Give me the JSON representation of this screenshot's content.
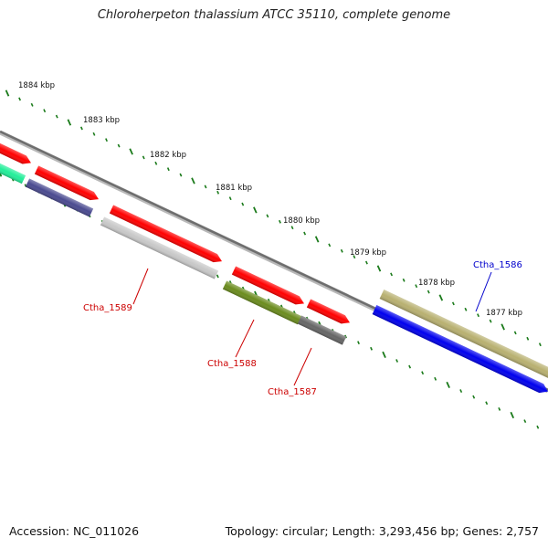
{
  "title": "Chloroherpeton thalassium ATCC 35110, complete genome",
  "footer": {
    "accession": "Accession: NC_011026",
    "stats": "Topology: circular; Length: 3,293,456 bp; Genes: 2,757"
  },
  "scale_labels": [
    "1884 kbp",
    "1883 kbp",
    "1882 kbp",
    "1881 kbp",
    "1880 kbp",
    "1879 kbp",
    "1878 kbp",
    "1877 kbp"
  ],
  "gene_labels": [
    {
      "name": "Ctha_1589",
      "color": "#cc0000"
    },
    {
      "name": "Ctha_1588",
      "color": "#cc0000"
    },
    {
      "name": "Ctha_1587",
      "color": "#cc0000"
    },
    {
      "name": "Ctha_1586",
      "color": "#0000cc"
    }
  ],
  "colors": {
    "backbone": "#7a7a7a",
    "tick": "#1a7a1a",
    "cds_red": "#ff0000",
    "cds_blue": "#0000ee",
    "cds_olive_light": "#b8b070",
    "cds_olive_dark": "#6b8c1e",
    "cds_navy": "#4a4a90",
    "cds_grey_light": "#c8c8c8",
    "cds_grey_dark": "#666666",
    "cds_teal": "#22ee99"
  }
}
